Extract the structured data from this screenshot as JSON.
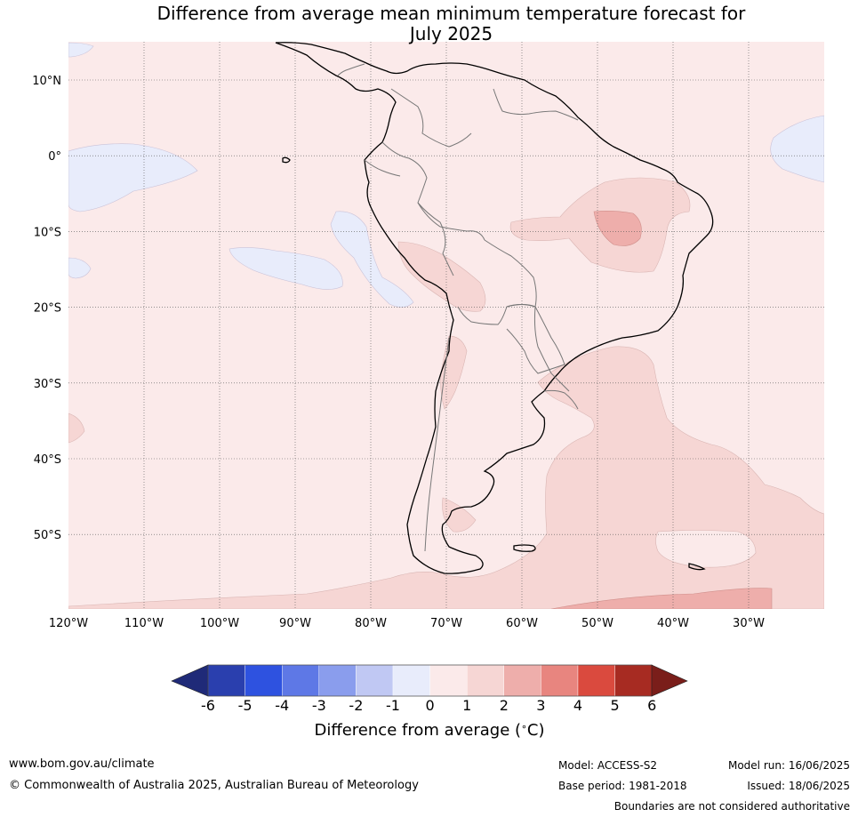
{
  "title_line1": "Difference from average mean minimum temperature forecast for",
  "title_line2": "July 2025",
  "lat_labels": [
    "10°N",
    "0°",
    "10°S",
    "20°S",
    "30°S",
    "40°S",
    "50°S"
  ],
  "lon_labels": [
    "120°W",
    "110°W",
    "100°W",
    "90°W",
    "80°W",
    "70°W",
    "60°W",
    "50°W",
    "40°W",
    "30°W"
  ],
  "colorbar": {
    "ticks": [
      "-6",
      "-5",
      "-4",
      "-3",
      "-2",
      "-1",
      "0",
      "1",
      "2",
      "3",
      "4",
      "5",
      "6"
    ],
    "colors": [
      "#2a3fae",
      "#2e52e0",
      "#5e78e6",
      "#8a9ded",
      "#c0c8f3",
      "#e8ecfb",
      "#fbeaea",
      "#f6d6d4",
      "#eeaeab",
      "#e8857f",
      "#da4a3e",
      "#a72b22"
    ],
    "under_color": "#1f2a78",
    "over_color": "#7a1e1a",
    "label": "Difference from average ($^\\circ$C)"
  },
  "map_colors": {
    "background": "#fbeaea",
    "warm1": "#f6d6d4",
    "warm2": "#eeaeab",
    "cool1": "#e8ecfb",
    "coast": "#000000",
    "border": "#777777",
    "grid": "#555555"
  },
  "footer": {
    "url": "www.bom.gov.au/climate",
    "copyright": "© Commonwealth of Australia 2025, Australian Bureau of Meteorology",
    "model": "Model: ACCESS-S2",
    "base_period": "Base period: 1981-2018",
    "model_run": "Model run: 16/06/2025",
    "issued": "Issued: 18/06/2025",
    "disclaimer": "Boundaries are not considered authoritative"
  }
}
